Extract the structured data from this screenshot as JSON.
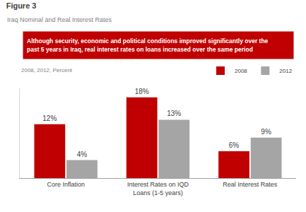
{
  "chart_data": {
    "type": "bar",
    "title": "Figure 3",
    "subtitle": "Iraq Nominal and Real Interest Rates",
    "annotations": [
      "Although security, economic and political conditions improved significantly over the past 5 years in Iraq, real interest rates on loans increased over the same period",
      "2008, 2012, Percent"
    ],
    "categories": [
      "Core Inflation",
      "Interest Rates on IQD Loans (1-5 years)",
      "Real Interest Rates"
    ],
    "series": [
      {
        "name": "2008",
        "color": "#c00000",
        "values": [
          12,
          18,
          6
        ],
        "value_labels": [
          "12%",
          "18%",
          "6%"
        ]
      },
      {
        "name": "2012",
        "color": "#a5a5a5",
        "values": [
          4,
          13,
          9
        ],
        "value_labels": [
          "4%",
          "13%",
          "9%"
        ]
      }
    ],
    "ylim": [
      0,
      20
    ],
    "yticks": [],
    "grid": false,
    "legend": "top-right",
    "data_labels": true,
    "tick_labels": "x"
  }
}
